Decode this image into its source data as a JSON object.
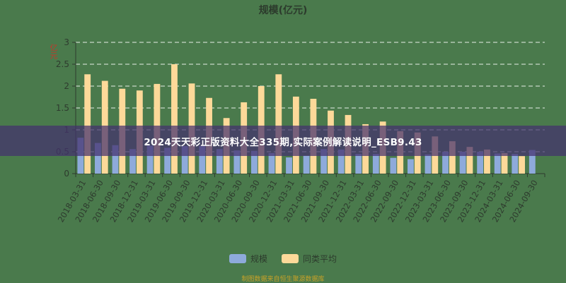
{
  "title": "规模(亿元)",
  "y_unit_label": "亿元",
  "banner": "2024天天彩正版资料大全335期,实际案例解读说明_ESB9.43",
  "legend": [
    {
      "label": "规模",
      "color": "#8eaadb"
    },
    {
      "label": "同类平均",
      "color": "#fdd999"
    }
  ],
  "source": "制图数据来自恒生聚源数据库",
  "chart_data": {
    "type": "bar",
    "title": "规模(亿元)",
    "xlabel": "",
    "ylabel": "亿元",
    "ylim": [
      0,
      3
    ],
    "yticks": [
      0,
      0.5,
      1,
      1.5,
      2,
      2.5,
      3
    ],
    "grid": true,
    "legend_position": "bottom",
    "categories": [
      "2018-03-31",
      "2018-06-30",
      "2018-09-30",
      "2018-12-31",
      "2019-03-31",
      "2019-06-30",
      "2019-09-30",
      "2019-12-31",
      "2020-03-31",
      "2020-06-30",
      "2020-09-30",
      "2020-12-31",
      "2021-03-31",
      "2021-06-30",
      "2021-09-30",
      "2021-12-31",
      "2022-03-31",
      "2022-06-30",
      "2022-09-30",
      "2022-12-31",
      "2023-03-31",
      "2023-06-30",
      "2023-09-30",
      "2023-12-31",
      "2024-03-31",
      "2024-06-30",
      "2024-09-30"
    ],
    "series": [
      {
        "name": "规模",
        "color": "#8eaadb",
        "values": [
          0.82,
          0.7,
          0.65,
          0.56,
          0.64,
          0.59,
          0.63,
          0.63,
          0.56,
          0.53,
          0.52,
          0.47,
          0.37,
          0.41,
          0.56,
          0.55,
          0.45,
          0.45,
          0.36,
          0.33,
          0.44,
          0.5,
          0.5,
          0.5,
          0.46,
          0.45,
          0.54
        ]
      },
      {
        "name": "同类平均",
        "color": "#fdd999",
        "values": [
          2.27,
          2.12,
          1.94,
          1.9,
          2.05,
          2.5,
          2.06,
          1.73,
          1.27,
          1.63,
          2.0,
          2.27,
          1.76,
          1.71,
          1.44,
          1.34,
          1.13,
          1.19,
          0.97,
          0.94,
          0.85,
          0.74,
          0.61,
          0.55,
          0.47,
          0.4,
          null
        ]
      }
    ]
  }
}
